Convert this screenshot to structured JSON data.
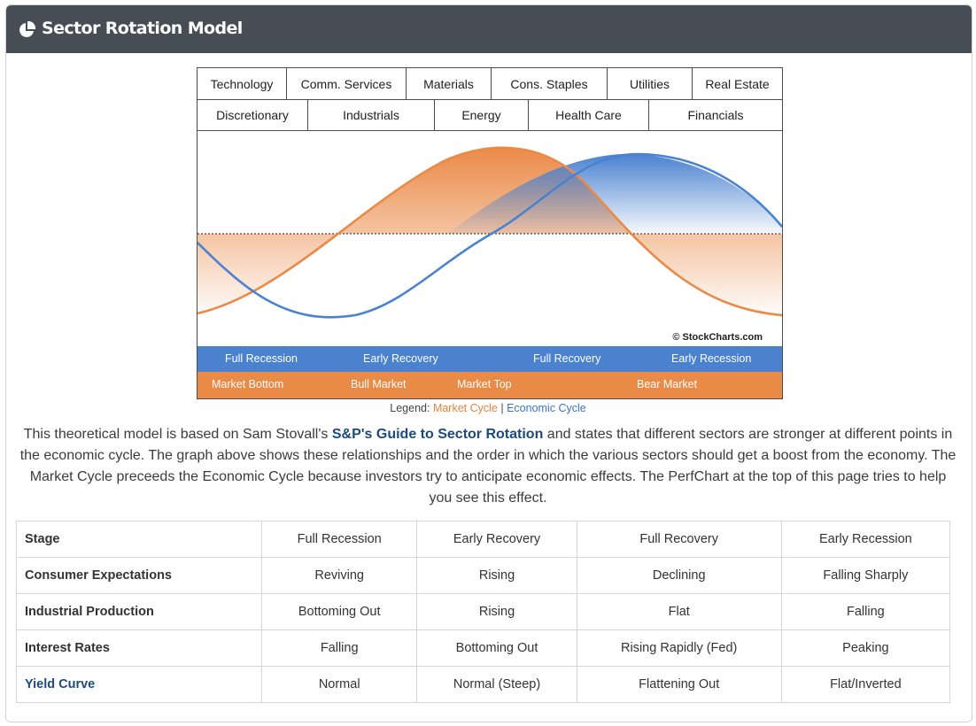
{
  "panel": {
    "title": "Sector Rotation Model",
    "icon": "pie-chart-icon"
  },
  "sectors": {
    "row1": [
      "Technology",
      "Comm. Services",
      "Materials",
      "Cons. Staples",
      "Utilities",
      "Real Estate"
    ],
    "row2": [
      "Discretionary",
      "Industrials",
      "Energy",
      "Health Care",
      "Financials"
    ]
  },
  "chart": {
    "copyright": "© StockCharts.com",
    "economic_stages": [
      "Full Recession",
      "Early Recovery",
      "Full Recovery",
      "Early Recession"
    ],
    "market_stages": [
      "Market Bottom",
      "Bull Market",
      "Market Top",
      "Bear Market"
    ],
    "colors": {
      "market": "#ea8a47",
      "economic": "#4a82d0"
    }
  },
  "legend": {
    "prefix": "Legend:",
    "market": "Market Cycle",
    "separator": "|",
    "economic": "Economic Cycle"
  },
  "description": {
    "before": "This theoretical model is based on Sam Stovall's ",
    "link": "S&P's Guide to Sector Rotation",
    "after": " and states that different sectors are stronger at different points in the economic cycle. The graph above shows these relationships and the order in which the various sectors should get a boost from the economy. The Market Cycle preceeds the Economic Cycle because investors try to anticipate economic effects. The PerfChart at the top of this page tries to help you see this effect."
  },
  "table": {
    "rows": [
      {
        "label": "Stage",
        "cells": [
          "Full Recession",
          "Early Recovery",
          "Full Recovery",
          "Early Recession"
        ]
      },
      {
        "label": "Consumer Expectations",
        "cells": [
          "Reviving",
          "Rising",
          "Declining",
          "Falling Sharply"
        ]
      },
      {
        "label": "Industrial Production",
        "cells": [
          "Bottoming Out",
          "Rising",
          "Flat",
          "Falling"
        ]
      },
      {
        "label": "Interest Rates",
        "cells": [
          "Falling",
          "Bottoming Out",
          "Rising Rapidly (Fed)",
          "Peaking"
        ]
      },
      {
        "label": "Yield Curve",
        "cells": [
          "Normal",
          "Normal (Steep)",
          "Flattening Out",
          "Flat/Inverted"
        ]
      }
    ]
  }
}
